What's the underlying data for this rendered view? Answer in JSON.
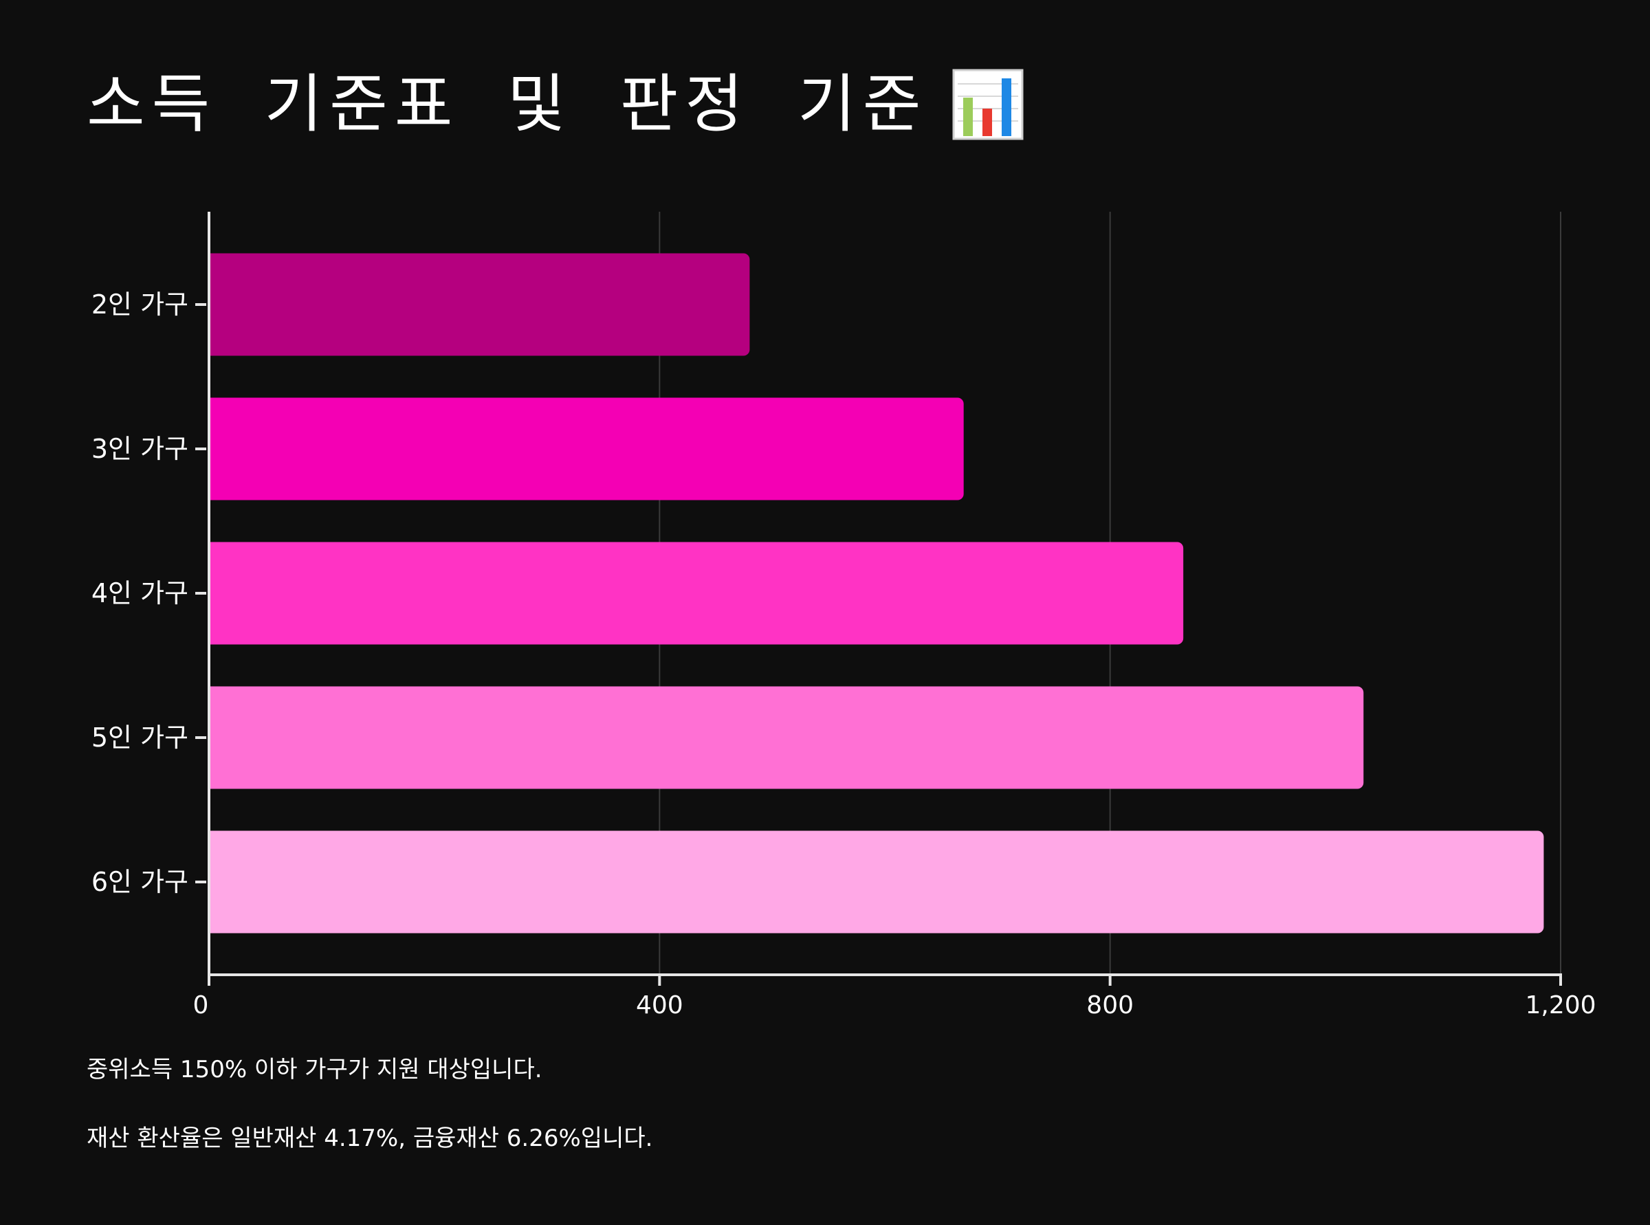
{
  "title": "소득 기준표 및 판정 기준",
  "title_icon": "bar-chart-icon",
  "notes": [
    "중위소득 150% 이하 가구가 지원 대상입니다.",
    "재산 환산율은 일반재산 4.17%, 금융재산 6.26%입니다."
  ],
  "chart_data": {
    "type": "bar",
    "orientation": "horizontal",
    "categories": [
      "2인 가구",
      "3인 가구",
      "4인 가구",
      "5인 가구",
      "6인 가구"
    ],
    "values": [
      480,
      670,
      865,
      1025,
      1185
    ],
    "colors": [
      "#b5007f",
      "#f400b4",
      "#ff33c4",
      "#ff70d4",
      "#ffa8e6"
    ],
    "xlim": [
      0,
      1200
    ],
    "x_ticks": [
      0,
      400,
      800,
      1200
    ],
    "x_tick_labels": [
      "0",
      "400",
      "800",
      "1,200"
    ],
    "grid": true,
    "title": "",
    "xlabel": "",
    "ylabel": ""
  }
}
